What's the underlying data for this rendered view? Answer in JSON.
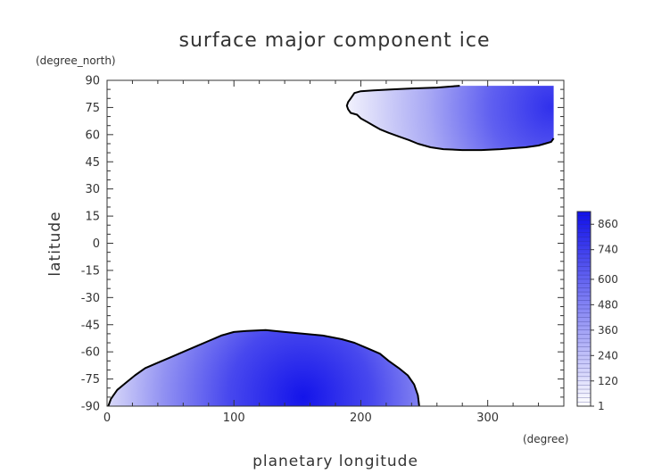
{
  "chart_data": {
    "type": "heatmap",
    "title": "surface major component ice",
    "xlabel": "planetary longitude",
    "ylabel": "latitude",
    "x_unit": "(degree)",
    "y_unit": "(degree_north)",
    "xlim": [
      0,
      360
    ],
    "ylim": [
      -90,
      90
    ],
    "x_ticks": [
      0,
      100,
      200,
      300
    ],
    "y_ticks": [
      90,
      75,
      60,
      45,
      30,
      15,
      0,
      -15,
      -30,
      -45,
      -60,
      -75,
      -90
    ],
    "grid": false,
    "colormap": {
      "low": "#ffffff",
      "high": "#1010e8",
      "contour": "#000000"
    },
    "colorbar": {
      "range": [
        1,
        920
      ],
      "tick_labels": [
        "860",
        "740",
        "600",
        "480",
        "360",
        "240",
        "120",
        "1"
      ],
      "tick_values": [
        860,
        740,
        600,
        480,
        360,
        240,
        120,
        1
      ]
    },
    "regions": [
      {
        "name": "north",
        "boundary": [
          [
            278,
            87
          ],
          [
            260,
            86
          ],
          [
            240,
            85.5
          ],
          [
            225,
            85
          ],
          [
            210,
            84.5
          ],
          [
            200,
            84
          ],
          [
            195,
            83
          ],
          [
            192,
            80
          ],
          [
            190,
            78
          ],
          [
            189,
            76
          ],
          [
            190,
            74
          ],
          [
            192,
            72
          ],
          [
            197,
            71
          ],
          [
            200,
            69
          ],
          [
            205,
            67
          ],
          [
            210,
            65
          ],
          [
            215,
            63
          ],
          [
            222,
            61
          ],
          [
            230,
            59
          ],
          [
            238,
            57
          ],
          [
            245,
            55
          ],
          [
            255,
            53
          ],
          [
            265,
            52
          ],
          [
            280,
            51.5
          ],
          [
            295,
            51.5
          ],
          [
            310,
            52
          ],
          [
            320,
            52.5
          ],
          [
            330,
            53
          ],
          [
            340,
            54
          ],
          [
            345,
            55
          ],
          [
            350,
            56
          ],
          [
            352,
            58
          ]
        ],
        "fill_extent": {
          "lon": [
            190,
            352
          ],
          "lat": [
            50,
            87
          ]
        },
        "max_center": {
          "lon": 350,
          "lat": 72
        }
      },
      {
        "name": "south",
        "boundary": [
          [
            1,
            -90
          ],
          [
            3,
            -86
          ],
          [
            8,
            -81
          ],
          [
            15,
            -77
          ],
          [
            22,
            -73
          ],
          [
            30,
            -69
          ],
          [
            40,
            -66
          ],
          [
            50,
            -63
          ],
          [
            60,
            -60
          ],
          [
            70,
            -57
          ],
          [
            80,
            -54
          ],
          [
            90,
            -51
          ],
          [
            100,
            -49
          ],
          [
            110,
            -48.5
          ],
          [
            125,
            -48
          ],
          [
            140,
            -49
          ],
          [
            155,
            -50
          ],
          [
            170,
            -51
          ],
          [
            185,
            -53
          ],
          [
            195,
            -55
          ],
          [
            205,
            -58
          ],
          [
            215,
            -61
          ],
          [
            222,
            -65
          ],
          [
            230,
            -69
          ],
          [
            237,
            -73
          ],
          [
            242,
            -78
          ],
          [
            245,
            -84
          ],
          [
            246,
            -90
          ]
        ],
        "fill_extent": {
          "lon": [
            0,
            248
          ],
          "lat": [
            -90,
            -47
          ]
        },
        "max_center": {
          "lon": 175,
          "lat": -85
        }
      }
    ]
  }
}
